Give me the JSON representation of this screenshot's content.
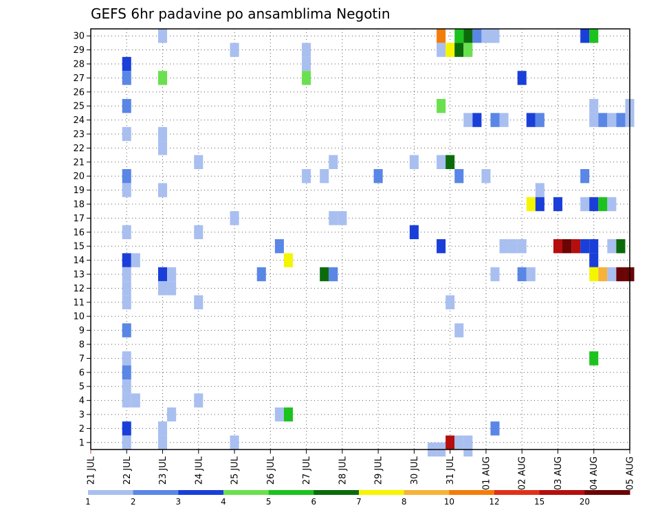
{
  "chart_data": {
    "type": "heatmap",
    "title": "GEFS 6hr padavine po ansamblima Negotin",
    "xlabel": "",
    "ylabel": "",
    "x_tick_labels": [
      "21 JUL",
      "22 JUL",
      "23 JUL",
      "24 JUL",
      "25 JUL",
      "26 JUL",
      "27 JUL",
      "28 JUL",
      "29 JUL",
      "30 JUL",
      "31 JUL",
      "01 AUG",
      "02 AUG",
      "03 AUG",
      "04 AUG",
      "05 AUG"
    ],
    "y_tick_labels": [
      "1",
      "2",
      "3",
      "4",
      "5",
      "6",
      "7",
      "8",
      "9",
      "10",
      "11",
      "12",
      "13",
      "14",
      "15",
      "16",
      "17",
      "18",
      "19",
      "20",
      "21",
      "22",
      "23",
      "24",
      "25",
      "26",
      "27",
      "28",
      "29",
      "30"
    ],
    "x_range": [
      "21 JUL",
      "05 AUG"
    ],
    "y_range": [
      1,
      30
    ],
    "grid": true,
    "colorbar": {
      "levels": [
        "1",
        "2",
        "3",
        "4",
        "5",
        "6",
        "7",
        "8",
        "10",
        "12",
        "15",
        "20"
      ],
      "colors": [
        "#a9bff0",
        "#5a86e6",
        "#1a3fd8",
        "#6ae04e",
        "#1cc21e",
        "#0b6b0b",
        "#f5f500",
        "#f7b23a",
        "#f27d0c",
        "#e0301a",
        "#b50e0e",
        "#6b0505"
      ]
    },
    "cells": [
      [
        23.0,
        30,
        1
      ],
      [
        25.0,
        29,
        1
      ],
      [
        27.0,
        29,
        1
      ],
      [
        27.0,
        28,
        1
      ],
      [
        22.0,
        28,
        3
      ],
      [
        22.0,
        27,
        2
      ],
      [
        23.0,
        27,
        4
      ],
      [
        27.0,
        27,
        4
      ],
      [
        22.0,
        25,
        2
      ],
      [
        22.0,
        23,
        1
      ],
      [
        23.0,
        23,
        1
      ],
      [
        23.0,
        22,
        1
      ],
      [
        24.0,
        21,
        1
      ],
      [
        22.0,
        20,
        2
      ],
      [
        22.0,
        19,
        1
      ],
      [
        23.0,
        19,
        1
      ],
      [
        25.0,
        17,
        1
      ],
      [
        22.0,
        16,
        1
      ],
      [
        24.0,
        16,
        1
      ],
      [
        26.25,
        15,
        2
      ],
      [
        22.0,
        14,
        3
      ],
      [
        22.25,
        14,
        1
      ],
      [
        26.5,
        14,
        7
      ],
      [
        22.0,
        13,
        1
      ],
      [
        23.0,
        13,
        3
      ],
      [
        23.25,
        13,
        1
      ],
      [
        22.0,
        12,
        1
      ],
      [
        23.0,
        12,
        1
      ],
      [
        23.25,
        12,
        1
      ],
      [
        22.0,
        11,
        1
      ],
      [
        24.0,
        11,
        1
      ],
      [
        22.0,
        9,
        2
      ],
      [
        22.0,
        7,
        1
      ],
      [
        22.0,
        6,
        2
      ],
      [
        22.0,
        5,
        1
      ],
      [
        22.0,
        4,
        1
      ],
      [
        22.25,
        4,
        1
      ],
      [
        24.0,
        4,
        1
      ],
      [
        23.25,
        3,
        1
      ],
      [
        26.25,
        3,
        1
      ],
      [
        26.5,
        3,
        5
      ],
      [
        22.0,
        2,
        3
      ],
      [
        23.0,
        2,
        1
      ],
      [
        22.0,
        1,
        1
      ],
      [
        23.0,
        1,
        1
      ],
      [
        25.0,
        1,
        1
      ],
      [
        27.0,
        20,
        1
      ],
      [
        27.5,
        20,
        1
      ],
      [
        27.75,
        21,
        1
      ],
      [
        27.5,
        13,
        6
      ],
      [
        27.75,
        13,
        2
      ],
      [
        25.75,
        13,
        2
      ],
      [
        27.75,
        17,
        1
      ],
      [
        28.0,
        17,
        1
      ],
      [
        29.0,
        20,
        2
      ],
      [
        30.0,
        21,
        1
      ],
      [
        30.0,
        16,
        3
      ],
      [
        30.75,
        30,
        9
      ],
      [
        31.25,
        30,
        5
      ],
      [
        31.5,
        30,
        6
      ],
      [
        31.75,
        30,
        2
      ],
      [
        32.0,
        30,
        1
      ],
      [
        32.25,
        30,
        1
      ],
      [
        30.75,
        29,
        1
      ],
      [
        31.0,
        29,
        7
      ],
      [
        31.25,
        29,
        6
      ],
      [
        31.5,
        29,
        4
      ],
      [
        30.75,
        25,
        4
      ],
      [
        31.5,
        24,
        1
      ],
      [
        31.75,
        24,
        3
      ],
      [
        32.25,
        24,
        2
      ],
      [
        32.5,
        24,
        1
      ],
      [
        30.75,
        21,
        1
      ],
      [
        31.0,
        21,
        6
      ],
      [
        31.25,
        20,
        2
      ],
      [
        32.0,
        20,
        1
      ],
      [
        30.75,
        15,
        3
      ],
      [
        32.25,
        13,
        1
      ],
      [
        31.0,
        11,
        1
      ],
      [
        31.25,
        9,
        1
      ],
      [
        32.25,
        2,
        2
      ],
      [
        30.5,
        0.5,
        1
      ],
      [
        30.75,
        0.5,
        1
      ],
      [
        31.0,
        1,
        11
      ],
      [
        31.25,
        1,
        1
      ],
      [
        31.5,
        1,
        1
      ],
      [
        31.5,
        0.5,
        1
      ],
      [
        33.0,
        27,
        3
      ],
      [
        33.25,
        24,
        3
      ],
      [
        33.5,
        24,
        2
      ],
      [
        33.5,
        19,
        1
      ],
      [
        33.25,
        18,
        7
      ],
      [
        33.5,
        18,
        3
      ],
      [
        34.0,
        18,
        3
      ],
      [
        32.5,
        15,
        1
      ],
      [
        32.75,
        15,
        1
      ],
      [
        33.0,
        15,
        1
      ],
      [
        34.0,
        15,
        11
      ],
      [
        34.25,
        15,
        12
      ],
      [
        34.5,
        15,
        11
      ],
      [
        33.0,
        13,
        2
      ],
      [
        33.25,
        13,
        1
      ],
      [
        35.0,
        25,
        1
      ],
      [
        35.0,
        24,
        1
      ],
      [
        35.25,
        24,
        2
      ],
      [
        35.5,
        24,
        1
      ],
      [
        35.75,
        24,
        2
      ],
      [
        36.0,
        24,
        1
      ],
      [
        36.0,
        25,
        1
      ],
      [
        34.75,
        30,
        3
      ],
      [
        35.0,
        30,
        5
      ],
      [
        34.75,
        20,
        2
      ],
      [
        34.75,
        18,
        1
      ],
      [
        35.0,
        18,
        3
      ],
      [
        35.25,
        18,
        5
      ],
      [
        35.5,
        18,
        1
      ],
      [
        34.75,
        15,
        3
      ],
      [
        35.0,
        15,
        3
      ],
      [
        35.5,
        15,
        1
      ],
      [
        35.75,
        15,
        6
      ],
      [
        35.0,
        14,
        3
      ],
      [
        35.0,
        13,
        7
      ],
      [
        35.25,
        13,
        8
      ],
      [
        35.5,
        13,
        1
      ],
      [
        35.75,
        13,
        12
      ],
      [
        36.0,
        13,
        12
      ],
      [
        35.0,
        7,
        5
      ]
    ]
  }
}
